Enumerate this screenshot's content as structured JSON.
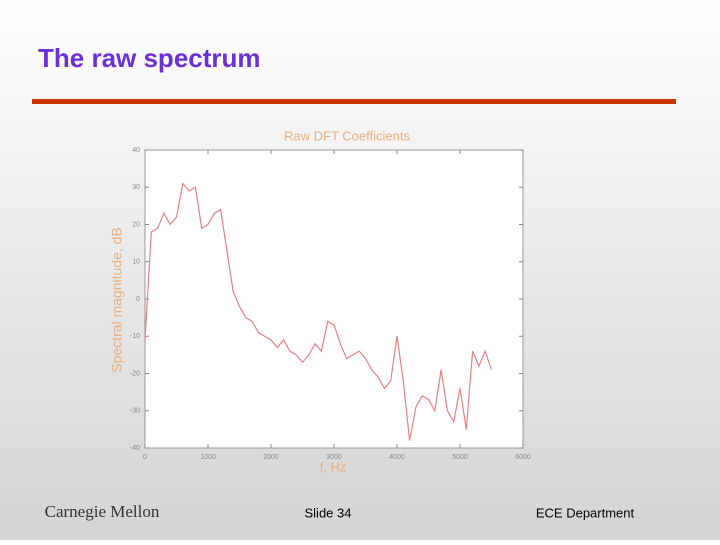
{
  "slide": {
    "title": "The raw spectrum",
    "footer_left": "Carnegie Mellon",
    "footer_center": "Slide 34",
    "footer_right": "ECE Department"
  },
  "chart_data": {
    "type": "line",
    "title": "Raw DFT Coefficients",
    "x_label": "f, Hz",
    "y_label": "Spectral magnitude, dB",
    "xlim": [
      0,
      6000
    ],
    "ylim": [
      -40,
      40
    ],
    "xticks": [
      0,
      1000,
      2000,
      3000,
      4000,
      5000,
      6000
    ],
    "yticks": [
      -40,
      -30,
      -20,
      -10,
      0,
      10,
      20,
      30,
      40
    ],
    "x": [
      0,
      100,
      200,
      300,
      400,
      500,
      600,
      700,
      800,
      900,
      1000,
      1100,
      1200,
      1300,
      1400,
      1500,
      1600,
      1700,
      1800,
      1900,
      2000,
      2100,
      2200,
      2300,
      2400,
      2500,
      2600,
      2700,
      2800,
      2900,
      3000,
      3100,
      3200,
      3300,
      3400,
      3500,
      3600,
      3700,
      3800,
      3900,
      4000,
      4100,
      4200,
      4300,
      4400,
      4500,
      4600,
      4700,
      4800,
      4900,
      5000,
      5100,
      5200,
      5300,
      5400,
      5500
    ],
    "series": [
      {
        "color": "#e88080",
        "values": [
          -11,
          18,
          19,
          23,
          20,
          22,
          31,
          29,
          30,
          19,
          20,
          23,
          24,
          13,
          2,
          -2,
          -5,
          -6,
          -9,
          -10,
          -11,
          -13,
          -11,
          -14,
          -15,
          -17,
          -15,
          -12,
          -14,
          -6,
          -7,
          -12,
          -16,
          -15,
          -14,
          -16,
          -19,
          -21,
          -24,
          -22,
          -10,
          -22,
          -38,
          -29,
          -26,
          -27,
          -30,
          -19,
          -30,
          -33,
          -24,
          -35,
          -14,
          -18,
          -14,
          -19
        ]
      }
    ]
  }
}
